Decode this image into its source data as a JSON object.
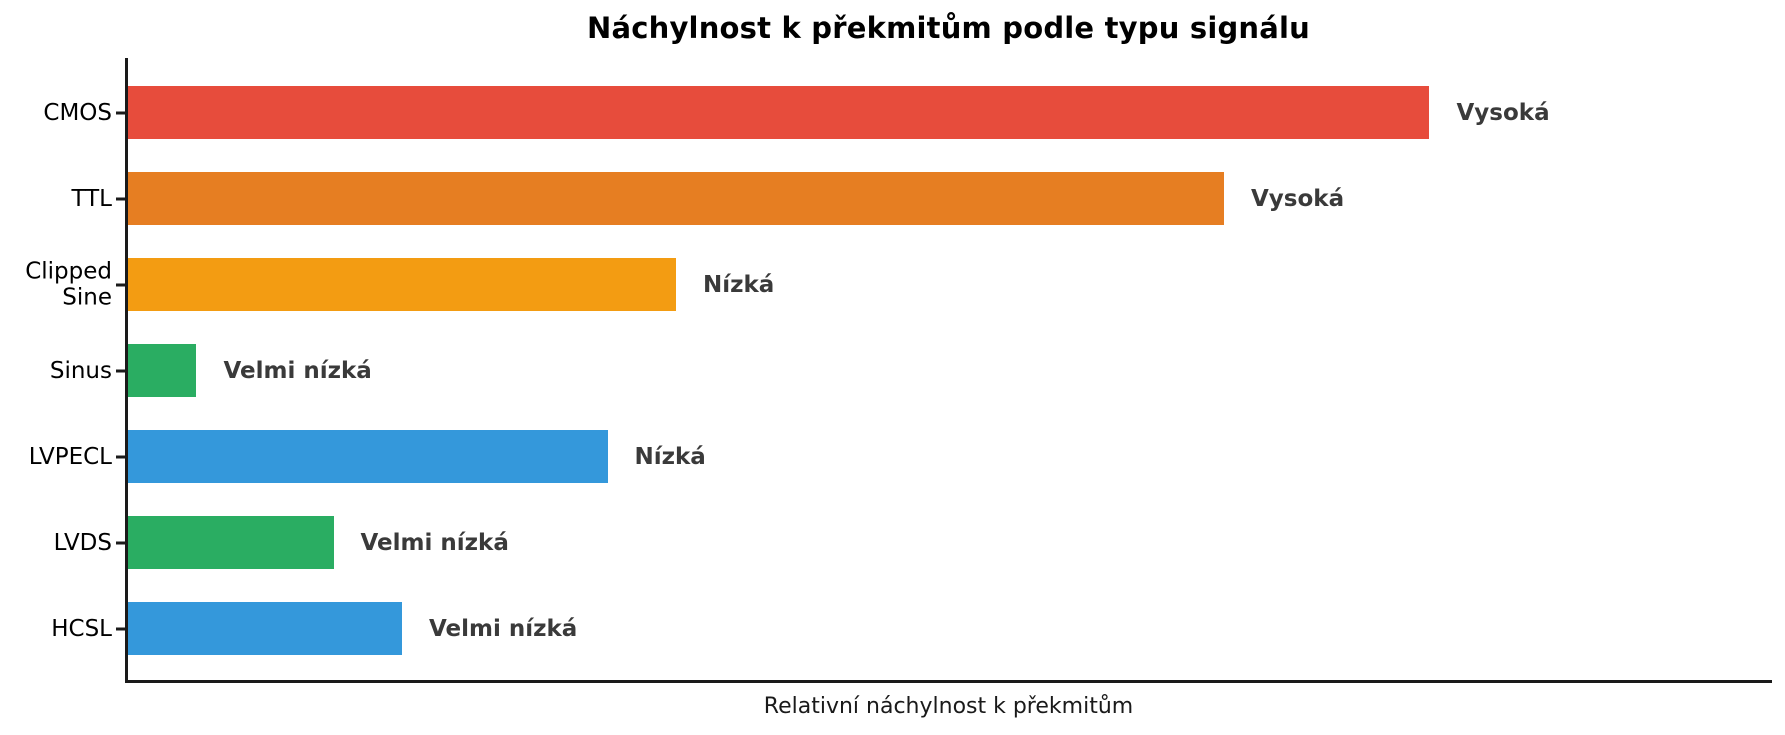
{
  "title": "Náchylnost k překmitům podle typu signálu",
  "xlabel": "Relativní náchylnost k překmitům",
  "chart_data": {
    "type": "bar",
    "orientation": "horizontal",
    "title": "Náchylnost k překmitům podle typu signálu",
    "xlabel": "Relativní náchylnost k překmitům",
    "ylabel": "",
    "xlim": [
      0,
      12
    ],
    "grid": false,
    "legend": false,
    "categories": [
      "CMOS",
      "TTL",
      "Clipped\nSine",
      "Sinus",
      "LVPECL",
      "LVDS",
      "HCSL"
    ],
    "values": [
      9.5,
      8,
      4,
      0.5,
      3.5,
      1.5,
      2
    ],
    "annotations": [
      "Vysoká",
      "Vysoká",
      "Nízká",
      "Velmi nízká",
      "Nízká",
      "Velmi nízká",
      "Velmi nízká"
    ],
    "bar_colors": [
      "#e74c3c",
      "#e67e22",
      "#f39c12",
      "#2aad62",
      "#3498db",
      "#2aad62",
      "#3498db"
    ],
    "annotation_color": "#3a3a3a",
    "axis_color": "#1a1a1a",
    "background_color": "#ffffff"
  }
}
